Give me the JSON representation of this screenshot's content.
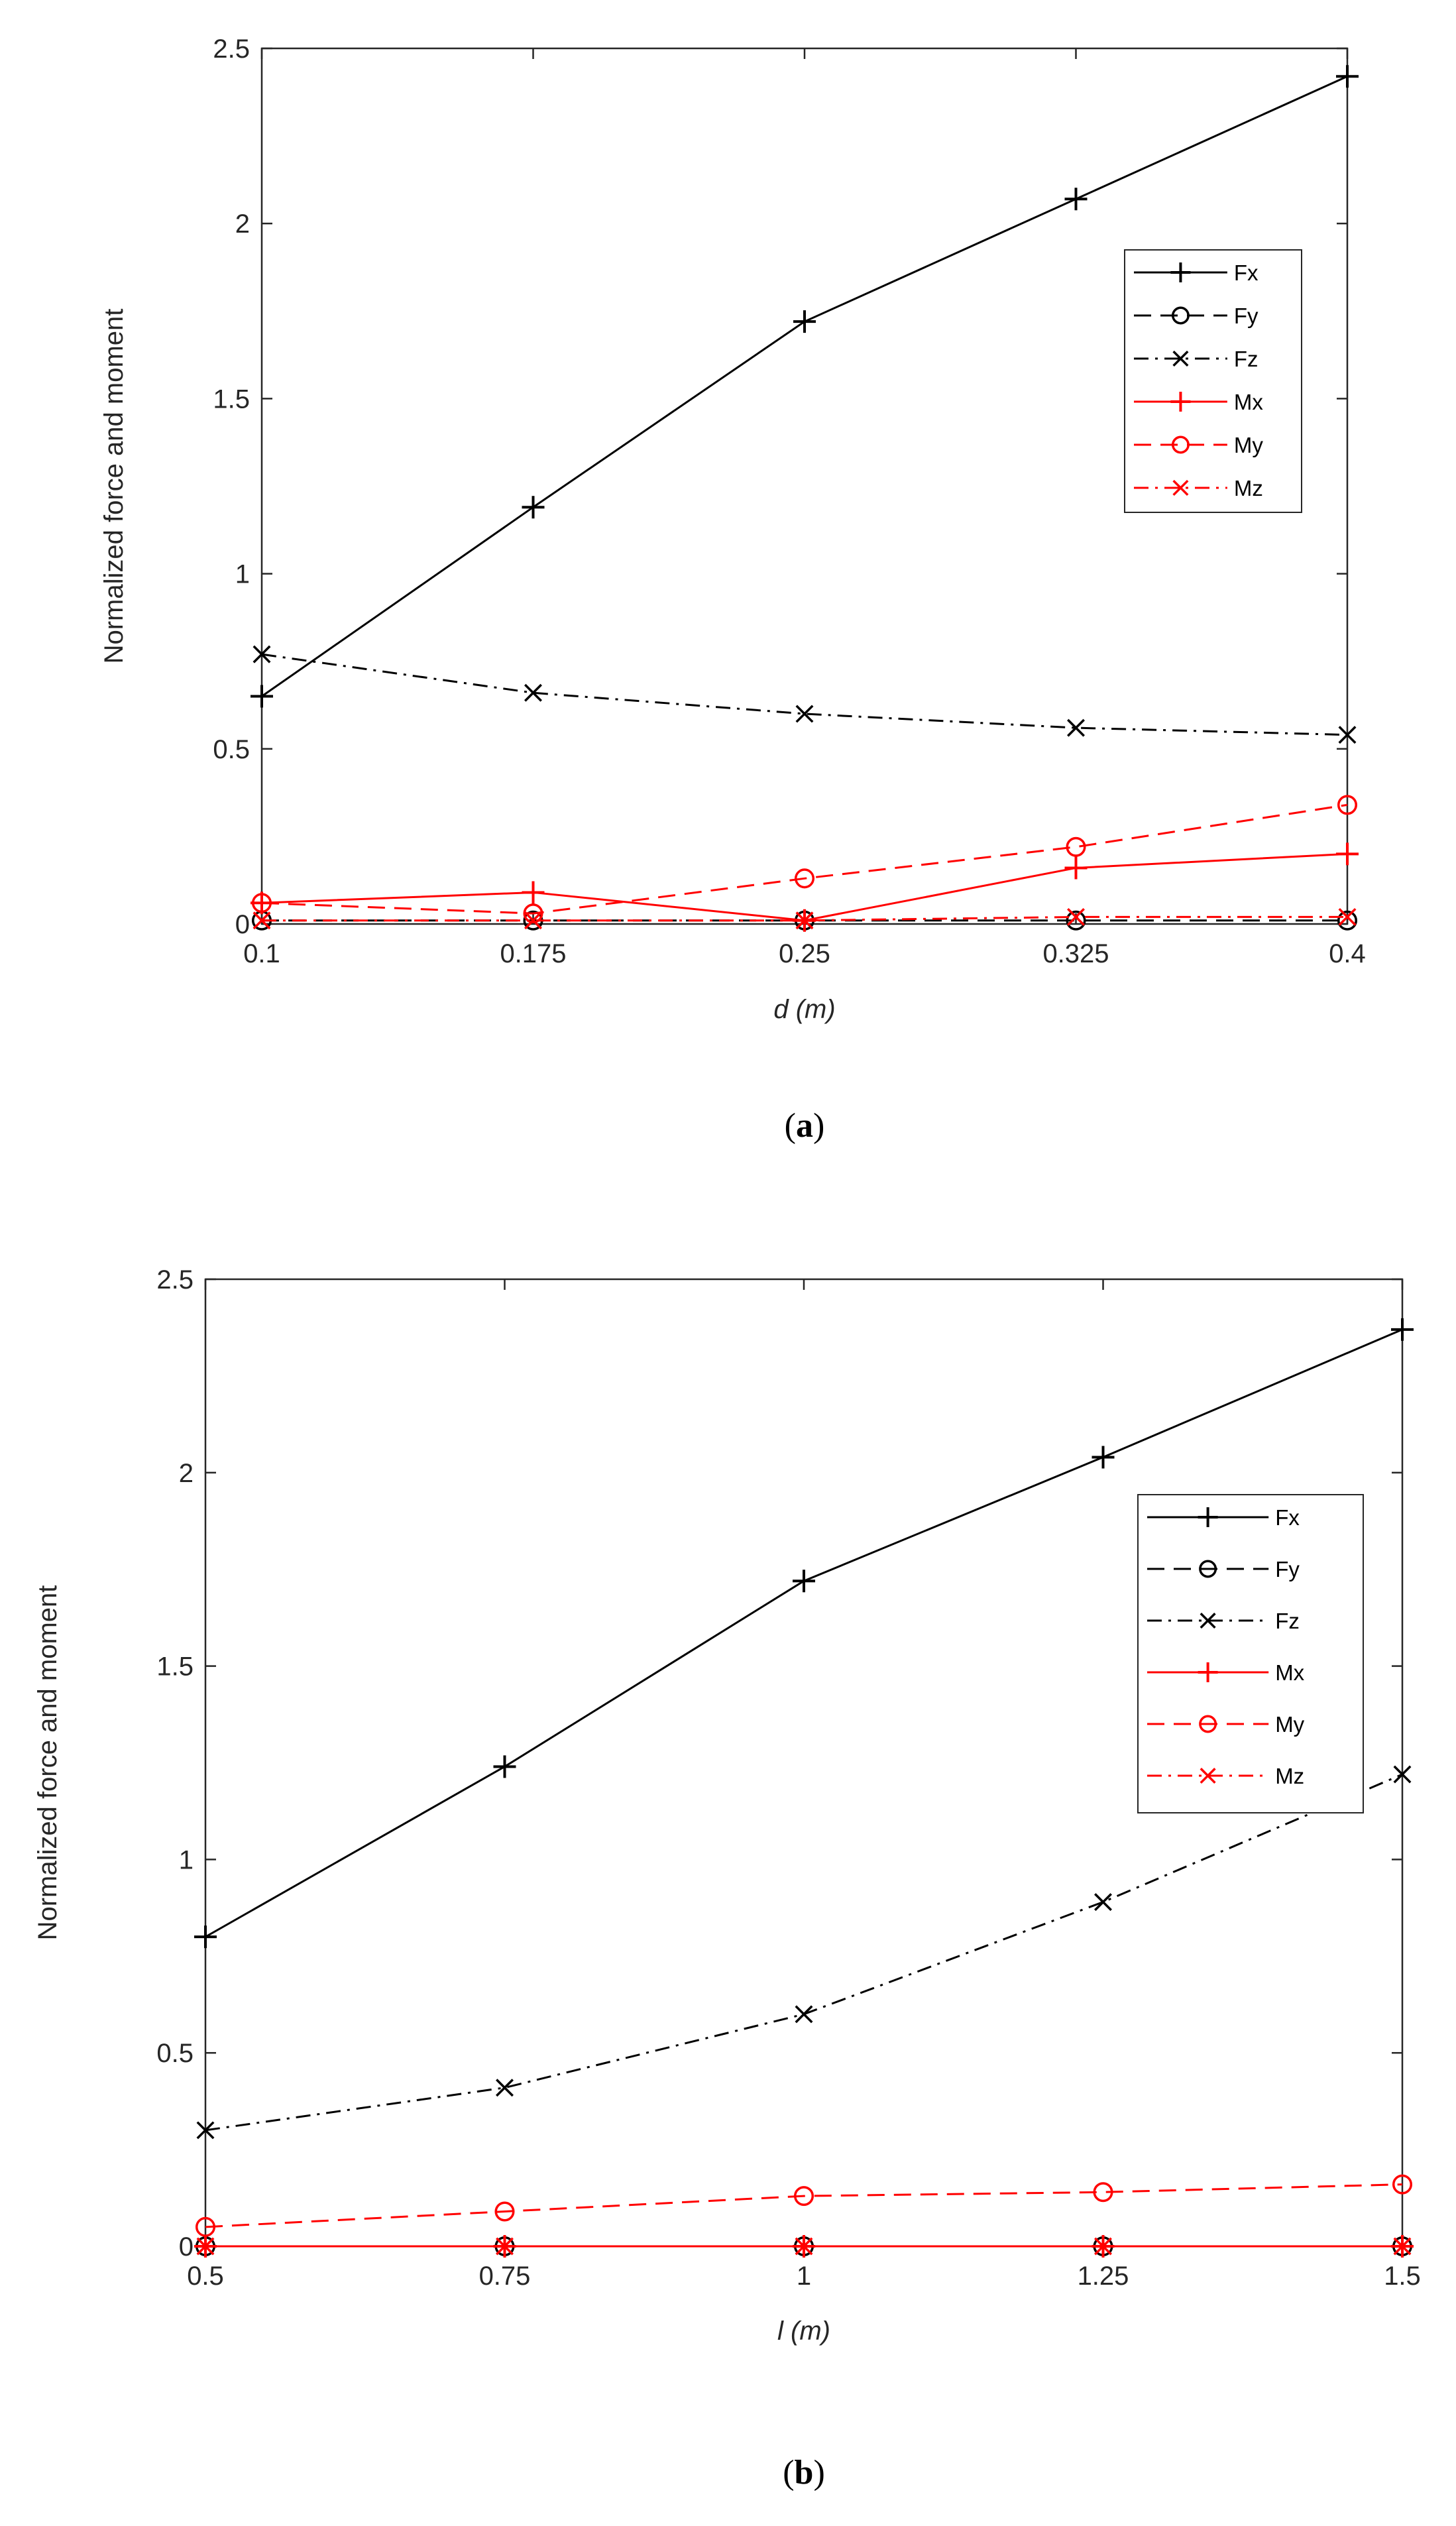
{
  "chart_data": [
    {
      "type": "line",
      "caption_open": "(",
      "caption_letter": "a",
      "caption_close": ")",
      "xlabel": "d (m)",
      "ylabel": "Normalized force and moment",
      "x": [
        0.1,
        0.175,
        0.25,
        0.325,
        0.4
      ],
      "xticklabels": [
        "0.1",
        "0.175",
        "0.25",
        "0.325",
        "0.4"
      ],
      "xlim": [
        0.1,
        0.4
      ],
      "ylim": [
        0,
        2.5
      ],
      "yticks": [
        0,
        0.5,
        1,
        1.5,
        2,
        2.5
      ],
      "yticklabels": [
        "0",
        "0.5",
        "1",
        "1.5",
        "2",
        "2.5"
      ],
      "legend_position": "upper-right",
      "grid": false,
      "series": [
        {
          "name": "Fx",
          "color": "#000000",
          "marker": "plus",
          "dash": "solid",
          "values": [
            0.65,
            1.19,
            1.72,
            2.07,
            2.42
          ]
        },
        {
          "name": "Fy",
          "color": "#000000",
          "marker": "circle",
          "dash": "dashed",
          "values": [
            0.01,
            0.01,
            0.01,
            0.01,
            0.01
          ]
        },
        {
          "name": "Fz",
          "color": "#000000",
          "marker": "x",
          "dash": "dashdot",
          "values": [
            0.77,
            0.66,
            0.6,
            0.56,
            0.54
          ]
        },
        {
          "name": "Mx",
          "color": "#ff0000",
          "marker": "plus",
          "dash": "solid",
          "values": [
            0.06,
            0.09,
            0.01,
            0.16,
            0.2
          ]
        },
        {
          "name": "My",
          "color": "#ff0000",
          "marker": "circle",
          "dash": "dashed",
          "values": [
            0.06,
            0.03,
            0.13,
            0.22,
            0.34
          ]
        },
        {
          "name": "Mz",
          "color": "#ff0000",
          "marker": "x",
          "dash": "dashdot",
          "values": [
            0.01,
            0.01,
            0.01,
            0.02,
            0.02
          ]
        }
      ]
    },
    {
      "type": "line",
      "caption_open": "(",
      "caption_letter": "b",
      "caption_close": ")",
      "xlabel": "l (m)",
      "ylabel": "Normalized force and moment",
      "x": [
        0.5,
        0.75,
        1,
        1.25,
        1.5
      ],
      "xticklabels": [
        "0.5",
        "0.75",
        "1",
        "1.25",
        "1.5"
      ],
      "xlim": [
        0.5,
        1.5
      ],
      "ylim": [
        0,
        2.5
      ],
      "yticks": [
        0,
        0.5,
        1,
        1.5,
        2,
        2.5
      ],
      "yticklabels": [
        "0",
        "0.5",
        "1",
        "1.5",
        "2",
        "2.5"
      ],
      "legend_position": "right",
      "grid": false,
      "series": [
        {
          "name": "Fx",
          "color": "#000000",
          "marker": "plus",
          "dash": "solid",
          "values": [
            0.8,
            1.24,
            1.72,
            2.04,
            2.37
          ]
        },
        {
          "name": "Fy",
          "color": "#000000",
          "marker": "circle",
          "dash": "dashed",
          "values": [
            0.0,
            0.0,
            0.0,
            0.0,
            0.0
          ]
        },
        {
          "name": "Fz",
          "color": "#000000",
          "marker": "x",
          "dash": "dashdot",
          "values": [
            0.3,
            0.41,
            0.6,
            0.89,
            1.22
          ]
        },
        {
          "name": "Mx",
          "color": "#ff0000",
          "marker": "plus",
          "dash": "solid",
          "values": [
            0.0,
            0.0,
            0.0,
            0.0,
            0.0
          ]
        },
        {
          "name": "My",
          "color": "#ff0000",
          "marker": "circle",
          "dash": "dashed",
          "values": [
            0.05,
            0.09,
            0.13,
            0.14,
            0.16
          ]
        },
        {
          "name": "Mz",
          "color": "#ff0000",
          "marker": "x",
          "dash": "dashdot",
          "values": [
            0.0,
            0.0,
            0.0,
            0.0,
            0.0
          ]
        }
      ]
    }
  ]
}
